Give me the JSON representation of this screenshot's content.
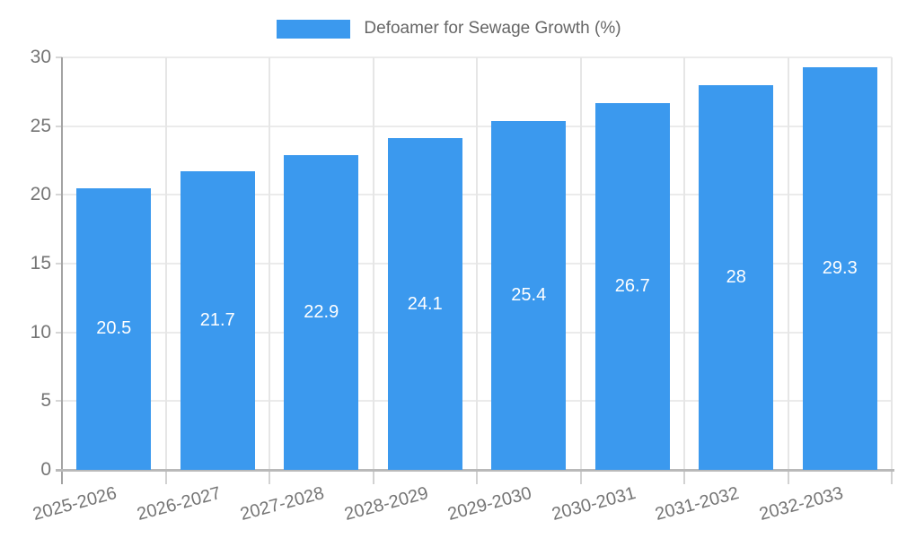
{
  "legend": {
    "label": "Defoamer for Sewage Growth (%)"
  },
  "chart_data": {
    "type": "bar",
    "title": "Defoamer for Sewage Growth (%)",
    "series_name": "Defoamer for Sewage Growth (%)",
    "categories": [
      "2025-2026",
      "2026-2027",
      "2027-2028",
      "2028-2029",
      "2029-2030",
      "2030-2031",
      "2031-2032",
      "2032-2033"
    ],
    "values": [
      20.5,
      21.7,
      22.9,
      24.1,
      25.4,
      26.7,
      28,
      29.3
    ],
    "value_labels": [
      "20.5",
      "21.7",
      "22.9",
      "24.1",
      "25.4",
      "26.7",
      "28",
      "29.3"
    ],
    "xlabel": "",
    "ylabel": "",
    "ylim": [
      0,
      30
    ],
    "yticks": [
      0,
      5,
      10,
      15,
      20,
      25,
      30
    ],
    "grid": true,
    "legend_position": "top",
    "bar_color": "#3B99EE",
    "value_label_color": "#ffffff",
    "tick_label_color": "#757575"
  }
}
